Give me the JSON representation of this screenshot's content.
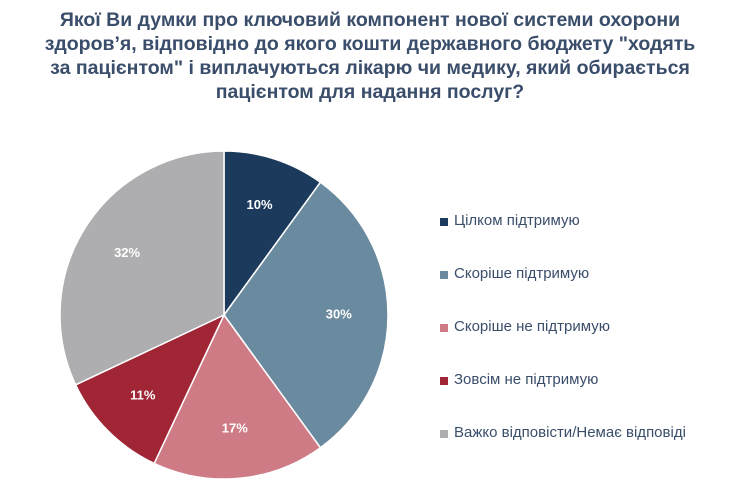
{
  "title_lines": [
    "Якої Ви думки про ключовий компонент нової системи охорони",
    "здоров’я, відповідно до якого кошти державного бюджету \"ходять",
    "за пацієнтом\" і виплачуються лікарю чи медику, який обирається",
    "пацієнтом для надання послуг?"
  ],
  "chart_data": {
    "type": "pie",
    "title": "Якої Ви думки про ключовий компонент нової системи охорони здоров’я, відповідно до якого кошти державного бюджету \"ходять за пацієнтом\" і виплачуються лікарю чи медику, який обирається пацієнтом для надання послуг?",
    "legend_position": "right",
    "slices": [
      {
        "label": "Цілком підтримую",
        "value": 10,
        "display": "10%",
        "color": "#1b3a5c",
        "label_color": "#ffffff"
      },
      {
        "label": "Скоріше підтримую",
        "value": 30,
        "display": "30%",
        "color": "#6a8aa0",
        "label_color": "#ffffff"
      },
      {
        "label": "Скоріше не підтримую",
        "value": 17,
        "display": "17%",
        "color": "#cf7b85",
        "label_color": "#ffffff"
      },
      {
        "label": "Зовсім не підтримую",
        "value": 11,
        "display": "11%",
        "color": "#a02535",
        "label_color": "#ffffff"
      },
      {
        "label": "Важко відповісти/Немає відповіді",
        "value": 32,
        "display": "32%",
        "color": "#aeaeb0",
        "label_color": "#ffffff"
      }
    ]
  }
}
